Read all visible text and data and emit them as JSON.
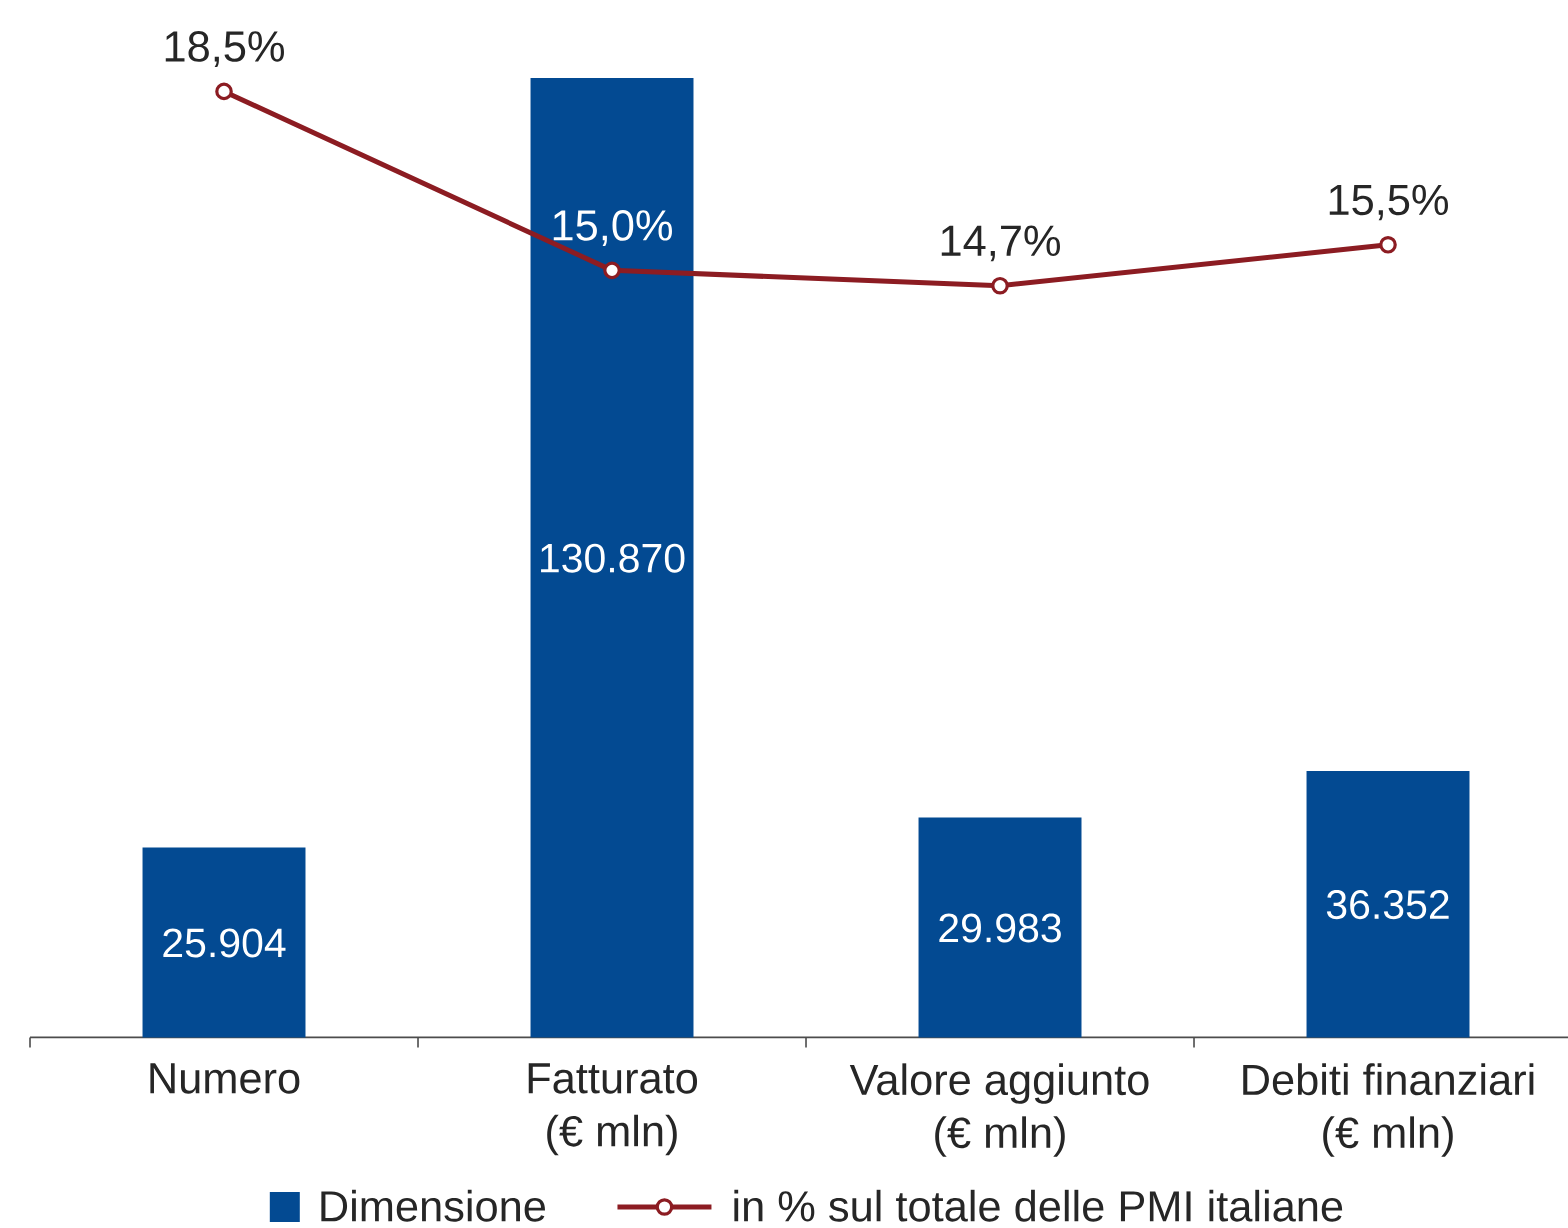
{
  "chart_data": {
    "type": "bar",
    "categories": [
      "Numero",
      "Fatturato\n(€ mln)",
      "Valore aggiunto\n(€ mln)",
      "Debiti finanziari\n(€ mln)"
    ],
    "series": [
      {
        "name": "Dimensione",
        "color": "#034a92",
        "values": [
          25904,
          130870,
          29983,
          36352
        ],
        "value_labels": [
          "25.904",
          "130.870",
          "29.983",
          "36.352"
        ]
      },
      {
        "name": "in % sul totale delle PMI italiane",
        "type": "line",
        "axis": "y2",
        "color": "#8c1c22",
        "values": [
          18.5,
          15.0,
          14.7,
          15.5
        ],
        "value_labels": [
          "18,5%",
          "15,0%",
          "14,7%",
          "15,5%"
        ]
      }
    ],
    "tick_labels": "x",
    "legend": "bottom",
    "marker": "circle",
    "line_style": "solid"
  }
}
